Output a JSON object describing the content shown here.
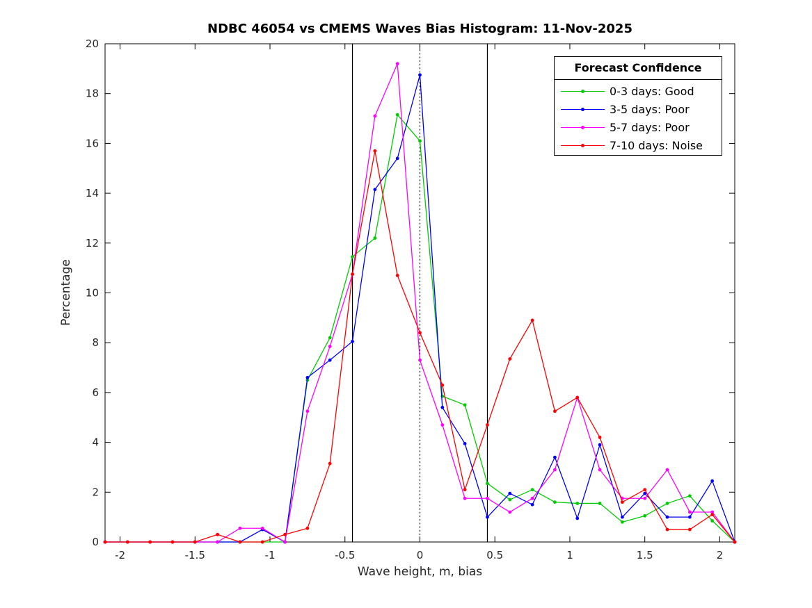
{
  "chart_data": {
    "type": "line",
    "title": "NDBC 46054 vs CMEMS Waves Bias Histogram: 11-Nov-2025",
    "xlabel": "Wave height, m, bias",
    "ylabel": "Percentage",
    "xlim": [
      -2.1,
      2.1
    ],
    "ylim": [
      0,
      20
    ],
    "xticks": [
      -2,
      -1.5,
      -1,
      -0.5,
      0,
      0.5,
      1,
      1.5,
      2
    ],
    "xtick_labels": [
      "-2",
      "-1.5",
      "-1",
      "-0.5",
      "0",
      "0.5",
      "1",
      "1.5",
      "2"
    ],
    "yticks": [
      0,
      2,
      4,
      6,
      8,
      10,
      12,
      14,
      16,
      18,
      20
    ],
    "ytick_labels": [
      "0",
      "2",
      "4",
      "6",
      "8",
      "10",
      "12",
      "14",
      "16",
      "18",
      "20"
    ],
    "grid": false,
    "x": [
      -2.1,
      -1.95,
      -1.8,
      -1.65,
      -1.5,
      -1.35,
      -1.2,
      -1.05,
      -0.9,
      -0.75,
      -0.6,
      -0.45,
      -0.3,
      -0.15,
      0,
      0.15,
      0.3,
      0.45,
      0.6,
      0.75,
      0.9,
      1.05,
      1.2,
      1.35,
      1.5,
      1.65,
      1.8,
      1.95,
      2.1
    ],
    "series": [
      {
        "name": "0-3 days: Good",
        "color": "#00cc00",
        "values": [
          0,
          0,
          0,
          0,
          0,
          0,
          0,
          0,
          0,
          6.5,
          8.2,
          11.45,
          12.2,
          17.15,
          16.1,
          5.85,
          5.5,
          2.35,
          1.7,
          2.1,
          1.6,
          1.55,
          1.55,
          0.8,
          1.05,
          1.55,
          1.85,
          0.85,
          0
        ]
      },
      {
        "name": "3-5 days: Poor",
        "color": "#0000ff",
        "values": [
          0,
          0,
          0,
          0,
          0,
          0,
          0,
          0.5,
          0,
          6.6,
          7.3,
          8.05,
          14.15,
          15.4,
          18.75,
          5.4,
          3.95,
          1.0,
          1.95,
          1.5,
          3.4,
          0.95,
          3.9,
          1.0,
          1.95,
          1.0,
          1.0,
          2.45,
          0
        ]
      },
      {
        "name": "5-7 days: Poor",
        "color": "#ff00ff",
        "values": [
          0,
          0,
          0,
          0,
          0,
          0,
          0.55,
          0.55,
          0,
          5.25,
          7.85,
          10.75,
          17.1,
          19.2,
          7.3,
          4.7,
          1.75,
          1.75,
          1.2,
          1.75,
          2.9,
          5.8,
          2.9,
          1.75,
          1.75,
          2.9,
          1.2,
          1.2,
          0
        ]
      },
      {
        "name": "7-10 days: Noise",
        "color": "#ff0000",
        "values": [
          0,
          0,
          0,
          0,
          0,
          0.3,
          0,
          0,
          0.3,
          0.55,
          3.15,
          10.75,
          15.7,
          10.7,
          8.4,
          6.3,
          2.1,
          4.7,
          7.35,
          8.9,
          5.25,
          5.8,
          4.2,
          1.6,
          2.1,
          0.5,
          0.5,
          1.1,
          0
        ]
      }
    ],
    "reference_lines": [
      {
        "x": -0.45,
        "style": "solid",
        "color": "#000000"
      },
      {
        "x": 0,
        "style": "dotted",
        "color": "#000000"
      },
      {
        "x": 0.45,
        "style": "solid",
        "color": "#000000"
      }
    ],
    "legend": {
      "title": "Forecast Confidence",
      "position": "top-right"
    },
    "axis_color": "#000000",
    "tick_label_color": "#262626"
  }
}
